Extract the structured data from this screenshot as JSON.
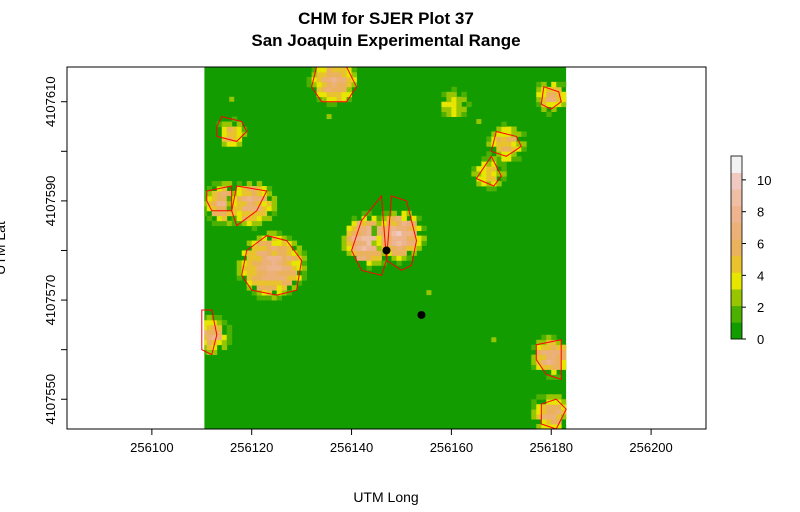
{
  "chart_data": {
    "type": "heatmap",
    "title": "CHM for SJER Plot 37",
    "subtitle": "San Joaquin Experimental Range",
    "xlabel": "UTM Long",
    "ylabel": "UTM Lat",
    "xlim": [
      256083,
      256211
    ],
    "ylim": [
      4107544,
      4107617
    ],
    "xticks": [
      256100,
      256120,
      256140,
      256160,
      256180,
      256200
    ],
    "xtick_labels": [
      "256100",
      "256120",
      "256140",
      "256160",
      "256180",
      "256200"
    ],
    "yticks": [
      4107550,
      4107560,
      4107570,
      4107580,
      4107590,
      4107600,
      4107610
    ],
    "ytick_labels": [
      "4107550",
      "",
      "4107570",
      "",
      "4107590",
      "",
      "4107610"
    ],
    "raster_extent": {
      "xmin": 256110.5,
      "xmax": 256183,
      "ymin": 4107544,
      "ymax": 4107617
    },
    "background_value": 0,
    "color_scale": {
      "min": 0,
      "max": 11.5,
      "ticks": [
        0,
        2,
        4,
        6,
        8,
        10
      ],
      "tick_labels": [
        "0",
        "2",
        "4",
        "6",
        "8",
        "10"
      ],
      "colors": [
        "#129C00",
        "#4CB000",
        "#97C600",
        "#E6E600",
        "#E8C32E",
        "#EBB25E",
        "#ECB176",
        "#EDB48E",
        "#EEBEA5",
        "#F0C9C0",
        "#F2F2F2"
      ]
    },
    "crowns": [
      {
        "cx": 256115.8,
        "cy": 4107603.5,
        "r": 1.6,
        "h": 6.5
      },
      {
        "cx": 256136.5,
        "cy": 4107614,
        "r": 3.5,
        "h": 7.5
      },
      {
        "cx": 256160.5,
        "cy": 4107609.5,
        "r": 1.5,
        "h": 4.5
      },
      {
        "cx": 256180,
        "cy": 4107611,
        "r": 2.0,
        "h": 7
      },
      {
        "cx": 256171,
        "cy": 4107601.5,
        "r": 2.5,
        "h": 6.5
      },
      {
        "cx": 256167.5,
        "cy": 4107595.5,
        "r": 2.0,
        "h": 5.5
      },
      {
        "cx": 256114.5,
        "cy": 4107589.5,
        "r": 3.0,
        "h": 8
      },
      {
        "cx": 256120,
        "cy": 4107589.5,
        "r": 3.5,
        "h": 7.5
      },
      {
        "cx": 256124,
        "cy": 4107577,
        "r": 5.5,
        "h": 8
      },
      {
        "cx": 256143.5,
        "cy": 4107582,
        "r": 4.2,
        "h": 9.5
      },
      {
        "cx": 256149.5,
        "cy": 4107583,
        "r": 4.0,
        "h": 9
      },
      {
        "cx": 256112,
        "cy": 4107563,
        "r": 2.5,
        "h": 7.5
      },
      {
        "cx": 256180,
        "cy": 4107558.5,
        "r": 3.0,
        "h": 8
      },
      {
        "cx": 256180,
        "cy": 4107547,
        "r": 2.8,
        "h": 7
      }
    ],
    "crown_outlines": [
      [
        [
          256114,
          4107607
        ],
        [
          256118,
          4107606
        ],
        [
          256119,
          4107604
        ],
        [
          256117,
          4107602
        ],
        [
          256113,
          4107603
        ],
        [
          256113,
          4107605
        ]
      ],
      [
        [
          256133,
          4107617
        ],
        [
          256139,
          4107617
        ],
        [
          256141,
          4107613
        ],
        [
          256139,
          4107610
        ],
        [
          256134,
          4107610
        ],
        [
          256132,
          4107613
        ]
      ],
      [
        [
          256178.5,
          4107613
        ],
        [
          256181.5,
          4107612
        ],
        [
          256182,
          4107610
        ],
        [
          256180,
          4107608.5
        ],
        [
          256178,
          4107609.5
        ]
      ],
      [
        [
          256169,
          4107604
        ],
        [
          256173,
          4107603
        ],
        [
          256174,
          4107601
        ],
        [
          256171,
          4107599
        ],
        [
          256168,
          4107600
        ]
      ],
      [
        [
          256168,
          4107599
        ],
        [
          256170,
          4107595
        ],
        [
          256168.5,
          4107593
        ],
        [
          256165,
          4107594.5
        ]
      ],
      [
        [
          256111,
          4107592
        ],
        [
          256116,
          4107593
        ],
        [
          256116,
          4107588
        ],
        [
          256112,
          4107588
        ],
        [
          256111,
          4107590
        ]
      ],
      [
        [
          256117,
          4107593
        ],
        [
          256123,
          4107592
        ],
        [
          256121,
          4107588
        ],
        [
          256117,
          4107585
        ],
        [
          256116,
          4107588
        ]
      ],
      [
        [
          256118,
          4107575
        ],
        [
          256119,
          4107580
        ],
        [
          256123,
          4107583
        ],
        [
          256127,
          4107582
        ],
        [
          256130,
          4107578
        ],
        [
          256129,
          4107572
        ],
        [
          256125,
          4107571
        ],
        [
          256120,
          4107572
        ]
      ],
      [
        [
          256142,
          4107586
        ],
        [
          256146,
          4107591
        ],
        [
          256147,
          4107578
        ],
        [
          256146,
          4107575
        ],
        [
          256142,
          4107576
        ],
        [
          256140,
          4107580
        ]
      ],
      [
        [
          256147,
          4107578
        ],
        [
          256148,
          4107591
        ],
        [
          256151,
          4107590
        ],
        [
          256153,
          4107582
        ],
        [
          256152,
          4107577
        ],
        [
          256150,
          4107576
        ]
      ],
      [
        [
          256110,
          4107568
        ],
        [
          256112,
          4107568
        ],
        [
          256113,
          4107563
        ],
        [
          256112,
          4107559
        ],
        [
          256110,
          4107560
        ]
      ],
      [
        [
          256177,
          4107561
        ],
        [
          256182,
          4107562
        ],
        [
          256182,
          4107554
        ],
        [
          256179,
          4107555
        ],
        [
          256177,
          4107558
        ]
      ],
      [
        [
          256178,
          4107549
        ],
        [
          256181,
          4107550
        ],
        [
          256183,
          4107548
        ],
        [
          256181,
          4107544
        ],
        [
          256178,
          4107545
        ]
      ]
    ],
    "points": [
      {
        "x": 256147,
        "y": 4107580
      },
      {
        "x": 256154,
        "y": 4107567
      }
    ],
    "low_specks": [
      {
        "x": 256127.5,
        "y": 4107618,
        "h": 3.2
      },
      {
        "x": 256116,
        "y": 4107610.5,
        "h": 2.2
      },
      {
        "x": 256135.5,
        "y": 4107607,
        "h": 2.5
      },
      {
        "x": 256155.5,
        "y": 4107571.5,
        "h": 2.1
      },
      {
        "x": 256168.5,
        "y": 4107562,
        "h": 2.3
      },
      {
        "x": 256165.5,
        "y": 4107606,
        "h": 2.4
      }
    ],
    "grid": false
  }
}
